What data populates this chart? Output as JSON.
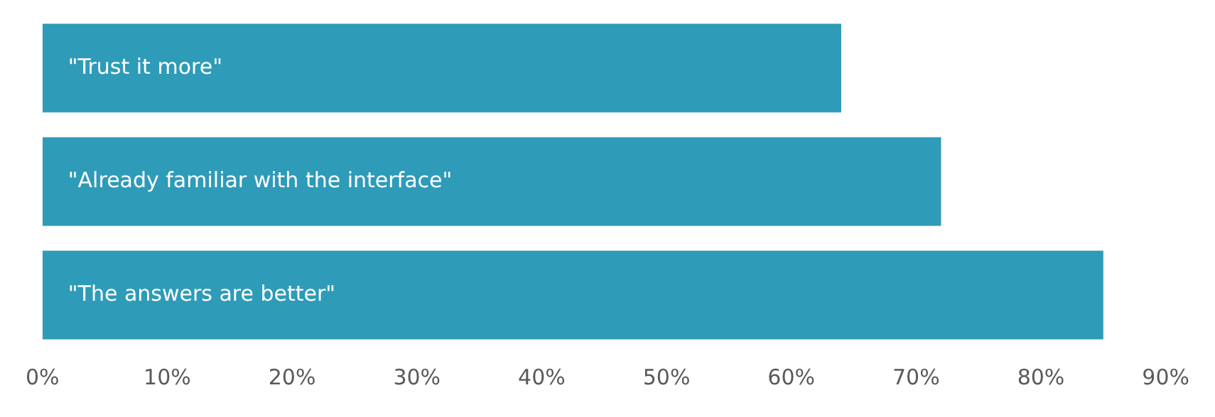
{
  "chart_data": {
    "type": "bar",
    "orientation": "horizontal",
    "categories": [
      "\"Trust it more\"",
      "\"Already familiar with the interface\"",
      "\"The answers are better\""
    ],
    "values": [
      64,
      72,
      85
    ],
    "color": "#2e9bb8",
    "xlim": [
      0,
      90
    ],
    "xticks": [
      {
        "value": 0,
        "label": "0%"
      },
      {
        "value": 10,
        "label": "10%"
      },
      {
        "value": 20,
        "label": "20%"
      },
      {
        "value": 30,
        "label": "30%"
      },
      {
        "value": 40,
        "label": "40%"
      },
      {
        "value": 50,
        "label": "50%"
      },
      {
        "value": 60,
        "label": "60%"
      },
      {
        "value": 70,
        "label": "70%"
      },
      {
        "value": 80,
        "label": "80%"
      },
      {
        "value": 90,
        "label": "90%"
      }
    ],
    "grid": false,
    "legend": false
  }
}
